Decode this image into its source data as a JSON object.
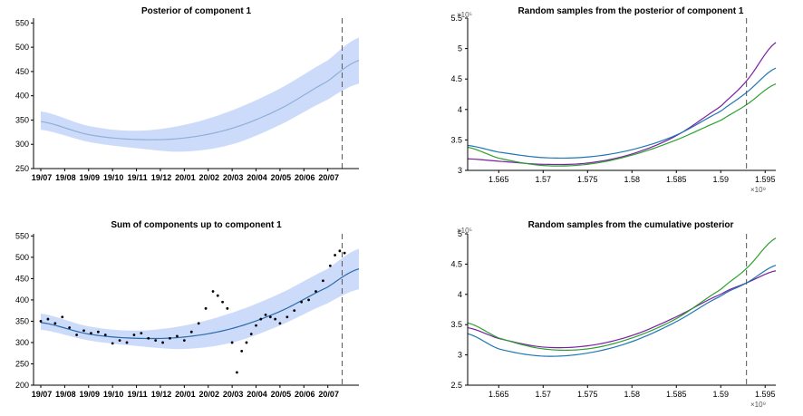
{
  "chart_data": [
    {
      "id": "posterior_component_1",
      "type": "line",
      "title": "Posterior of component 1",
      "xlabel": "",
      "ylabel": "",
      "x_tick_labels": [
        "19/07",
        "19/08",
        "19/09",
        "19/10",
        "19/11",
        "19/12",
        "20/01",
        "20/02",
        "20/03",
        "20/04",
        "20/05",
        "20/06",
        "20/07"
      ],
      "y_ticks": [
        250,
        300,
        350,
        400,
        450,
        500,
        550
      ],
      "ylim": [
        250,
        560
      ],
      "x_range_months": [
        0,
        13.3
      ],
      "vline_month": 12.6,
      "band_color": "#cddbfb",
      "line_color": "#8fafd8",
      "x": [
        0,
        2,
        4,
        6,
        8,
        10,
        12,
        13.3
      ],
      "mean": [
        347,
        320,
        310,
        313,
        333,
        373,
        430,
        473
      ],
      "lower": [
        330,
        305,
        292,
        285,
        300,
        340,
        392,
        425
      ],
      "upper": [
        368,
        338,
        328,
        340,
        370,
        415,
        473,
        520
      ]
    },
    {
      "id": "random_samples_component_1",
      "type": "line",
      "title": "Random samples from the posterior of component 1",
      "xlabel": "",
      "ylabel": "",
      "y_exponent": "×10⁵",
      "x_exponent": "×10⁹",
      "x_ticks": [
        1.565,
        1.57,
        1.575,
        1.58,
        1.585,
        1.59,
        1.595
      ],
      "x_tick_labels": [
        "1.565",
        "1.57",
        "1.575",
        "1.58",
        "1.585",
        "1.59",
        "1.595"
      ],
      "y_ticks": [
        3,
        3.5,
        4,
        4.5,
        5,
        5.5
      ],
      "y_tick_labels": [
        "3",
        "3.5",
        "4",
        "4.5",
        "5",
        "5.5"
      ],
      "xlim": [
        1.5615,
        1.5962
      ],
      "ylim": [
        3,
        5.5
      ],
      "vline_x": 1.5929,
      "series": [
        {
          "color": "#7b1fa2",
          "x": [
            1.5615,
            1.565,
            1.57,
            1.575,
            1.58,
            1.585,
            1.59,
            1.5929,
            1.5962
          ],
          "values": [
            3.19,
            3.15,
            3.1,
            3.12,
            3.27,
            3.57,
            4.05,
            4.47,
            5.1
          ]
        },
        {
          "color": "#1f77b4",
          "x": [
            1.5615,
            1.565,
            1.57,
            1.575,
            1.58,
            1.585,
            1.59,
            1.5929,
            1.5962
          ],
          "values": [
            3.41,
            3.3,
            3.21,
            3.22,
            3.34,
            3.58,
            3.97,
            4.28,
            4.68
          ]
        },
        {
          "color": "#2ca02c",
          "x": [
            1.5615,
            1.565,
            1.57,
            1.575,
            1.58,
            1.585,
            1.59,
            1.5929,
            1.5962
          ],
          "values": [
            3.38,
            3.2,
            3.08,
            3.1,
            3.25,
            3.5,
            3.82,
            4.08,
            4.42
          ]
        }
      ]
    },
    {
      "id": "sum_components_1",
      "type": "line",
      "title": "Sum of components up to component 1",
      "xlabel": "",
      "ylabel": "",
      "x_tick_labels": [
        "19/07",
        "19/08",
        "19/09",
        "19/10",
        "19/11",
        "19/12",
        "20/01",
        "20/02",
        "20/03",
        "20/04",
        "20/05",
        "20/06",
        "20/07"
      ],
      "y_ticks": [
        200,
        250,
        300,
        350,
        400,
        450,
        500,
        550
      ],
      "ylim": [
        200,
        555
      ],
      "x_range_months": [
        0,
        13.3
      ],
      "vline_month": 12.6,
      "band_color": "#cddbfb",
      "line_color": "#2b6aa8",
      "x": [
        0,
        2,
        4,
        6,
        8,
        10,
        12,
        13.3
      ],
      "mean": [
        347,
        320,
        310,
        313,
        333,
        373,
        430,
        473
      ],
      "lower": [
        330,
        305,
        292,
        285,
        300,
        340,
        392,
        425
      ],
      "upper": [
        368,
        338,
        328,
        340,
        370,
        415,
        473,
        520
      ],
      "observations": {
        "x": [
          0,
          0.3,
          0.6,
          0.9,
          1.2,
          1.5,
          1.8,
          2.1,
          2.4,
          2.7,
          3.0,
          3.3,
          3.6,
          3.9,
          4.2,
          4.5,
          4.8,
          5.1,
          5.4,
          5.7,
          6.0,
          6.3,
          6.6,
          6.9,
          7.2,
          7.4,
          7.6,
          7.8,
          8.0,
          8.2,
          8.4,
          8.6,
          8.8,
          9.0,
          9.2,
          9.4,
          9.6,
          9.8,
          10.0,
          10.3,
          10.6,
          10.9,
          11.2,
          11.5,
          11.8,
          12.1,
          12.3,
          12.5,
          12.7
        ],
        "values": [
          350,
          355,
          345,
          360,
          335,
          318,
          328,
          322,
          325,
          318,
          298,
          305,
          300,
          318,
          322,
          310,
          305,
          300,
          310,
          315,
          305,
          325,
          345,
          380,
          420,
          410,
          395,
          380,
          300,
          230,
          280,
          300,
          320,
          340,
          355,
          365,
          360,
          355,
          345,
          360,
          375,
          395,
          400,
          420,
          445,
          480,
          505,
          515,
          510
        ]
      }
    },
    {
      "id": "random_samples_cumulative",
      "type": "line",
      "title": "Random samples from the cumulative posterior",
      "xlabel": "",
      "ylabel": "",
      "y_exponent": "×10⁵",
      "x_exponent": "×10⁹",
      "x_ticks": [
        1.565,
        1.57,
        1.575,
        1.58,
        1.585,
        1.59,
        1.595
      ],
      "x_tick_labels": [
        "1.565",
        "1.57",
        "1.575",
        "1.58",
        "1.585",
        "1.59",
        "1.595"
      ],
      "y_ticks": [
        2.5,
        3,
        3.5,
        4,
        4.5,
        5
      ],
      "y_tick_labels": [
        "2.5",
        "3",
        "3.5",
        "4",
        "4.5",
        "5"
      ],
      "xlim": [
        1.5615,
        1.5962
      ],
      "ylim": [
        2.5,
        5
      ],
      "vline_x": 1.5929,
      "series": [
        {
          "color": "#7b1fa2",
          "x": [
            1.5615,
            1.565,
            1.57,
            1.575,
            1.58,
            1.585,
            1.59,
            1.5929,
            1.5962
          ],
          "values": [
            3.45,
            3.27,
            3.13,
            3.15,
            3.32,
            3.63,
            4.0,
            4.19,
            4.39
          ]
        },
        {
          "color": "#1f77b4",
          "x": [
            1.5615,
            1.565,
            1.57,
            1.575,
            1.58,
            1.585,
            1.59,
            1.5929,
            1.5962
          ],
          "values": [
            3.35,
            3.1,
            2.98,
            3.03,
            3.22,
            3.55,
            3.97,
            4.19,
            4.48
          ]
        },
        {
          "color": "#2ca02c",
          "x": [
            1.5615,
            1.565,
            1.57,
            1.575,
            1.58,
            1.585,
            1.59,
            1.5929,
            1.5962
          ],
          "values": [
            3.53,
            3.28,
            3.1,
            3.1,
            3.28,
            3.6,
            4.08,
            4.43,
            4.93
          ]
        }
      ]
    }
  ]
}
